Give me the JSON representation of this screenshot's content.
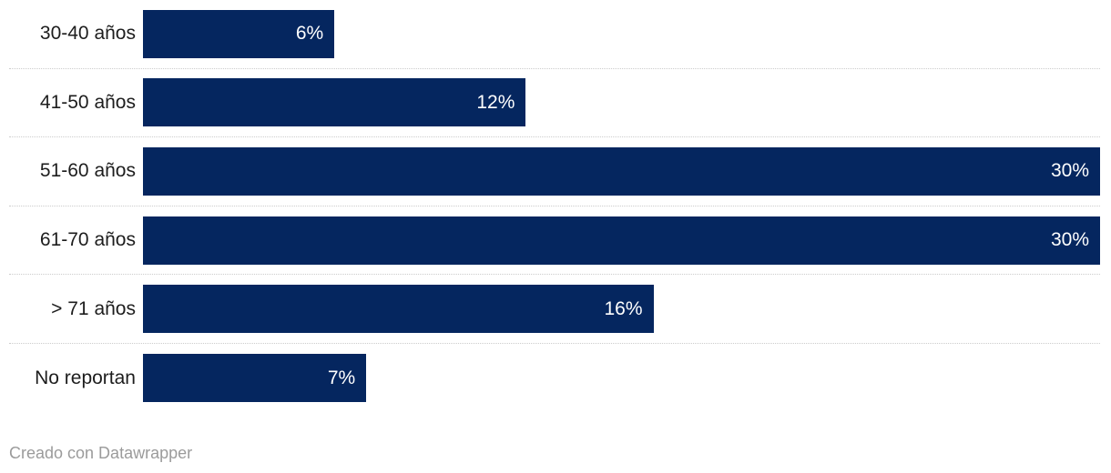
{
  "chart_data": {
    "type": "bar",
    "orientation": "horizontal",
    "title": "",
    "xlabel": "",
    "ylabel": "",
    "categories": [
      "30-40 años",
      "41-50 años",
      "51-60 años",
      "61-70 años",
      "> 71 años",
      "No reportan"
    ],
    "values": [
      6,
      12,
      30,
      30,
      16,
      7
    ],
    "value_labels": [
      "6%",
      "12%",
      "30%",
      "30%",
      "16%",
      "7%"
    ],
    "xlim": [
      0,
      30
    ],
    "grid": false,
    "legend": false,
    "separators": "dotted between rows"
  },
  "colors": {
    "bar": "#05265f",
    "bar_label": "#ffffff",
    "category_label": "#1d1d1d",
    "separator": "#cccccc",
    "footer_text": "#9b9b9b",
    "background": "#ffffff"
  },
  "footer": {
    "attribution": "Creado con Datawrapper"
  }
}
